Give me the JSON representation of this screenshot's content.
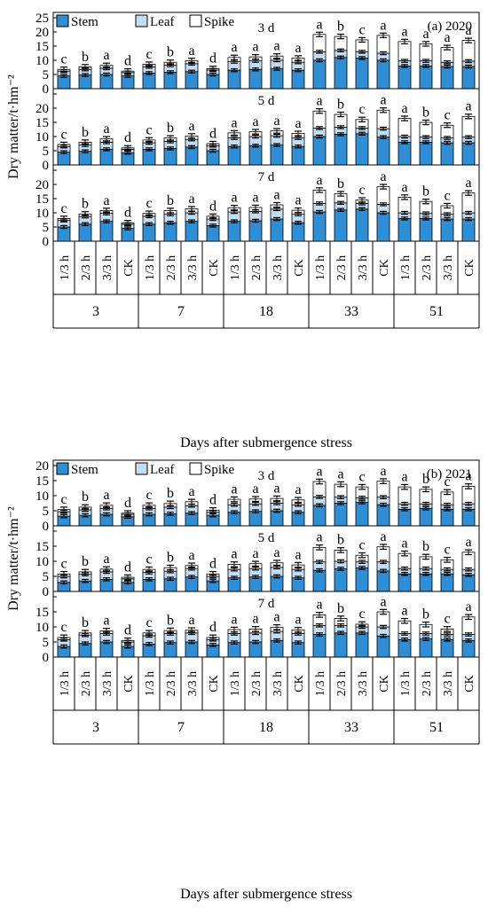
{
  "colors": {
    "stem": "#2e8fd6",
    "leaf": "#c3ddf2",
    "spike": "#ffffff",
    "stroke": "#000000"
  },
  "chart_data": [
    {
      "type": "bar",
      "stacked": true,
      "panel_label": "(a) 2020",
      "ylabel": "Dry matter/t·hm⁻²",
      "xlabel": "Days after submergence stress",
      "legend": [
        "Stem",
        "Leaf",
        "Spike"
      ],
      "legend_placement": "top-left",
      "ylim": [
        0,
        25
      ],
      "yticks": [
        0,
        5,
        10,
        15,
        20,
        25
      ],
      "categories": [
        "1/3 h",
        "2/3 h",
        "3/3 h",
        "CK"
      ],
      "groups": [
        "3",
        "7",
        "18",
        "33",
        "51"
      ],
      "subplots": [
        {
          "title": "3 d",
          "stem": [
            4.5,
            4.8,
            5.0,
            4.5,
            5.5,
            5.8,
            6.0,
            5.0,
            6.5,
            6.8,
            7.0,
            6.5,
            10.0,
            11.0,
            10.8,
            10.0,
            8.0,
            8.0,
            7.8,
            7.8
          ],
          "leaf": [
            1.7,
            2.0,
            2.2,
            1.2,
            2.2,
            2.5,
            2.8,
            1.6,
            3.0,
            3.0,
            3.0,
            2.8,
            3.0,
            2.5,
            2.2,
            2.5,
            1.8,
            1.8,
            1.5,
            1.9
          ],
          "spike": [
            0.6,
            0.9,
            1.0,
            0.5,
            0.9,
            1.0,
            1.1,
            0.5,
            1.5,
            1.4,
            1.5,
            1.5,
            6.1,
            4.9,
            4.2,
            6.3,
            6.8,
            6.0,
            5.2,
            7.3
          ],
          "letters": [
            "c",
            "b",
            "a",
            "d",
            "c",
            "b",
            "a",
            "d",
            "a",
            "a",
            "a",
            "a",
            "a",
            "b",
            "c",
            "a",
            "a",
            "a",
            "a",
            "a"
          ]
        },
        {
          "title": "5 d",
          "stem": [
            4.5,
            4.8,
            5.5,
            4.3,
            5.5,
            5.8,
            6.3,
            5.0,
            6.5,
            6.8,
            7.0,
            6.5,
            10.0,
            10.8,
            11.0,
            9.8,
            8.0,
            8.0,
            7.8,
            7.8
          ],
          "leaf": [
            2.0,
            2.2,
            2.5,
            1.2,
            2.3,
            2.5,
            2.7,
            1.8,
            3.0,
            3.2,
            3.3,
            3.0,
            3.0,
            2.5,
            2.0,
            3.0,
            2.0,
            1.8,
            1.7,
            2.0
          ],
          "spike": [
            0.7,
            1.0,
            1.2,
            0.5,
            1.0,
            1.2,
            1.2,
            0.7,
            1.8,
            1.7,
            1.7,
            1.6,
            6.0,
            4.5,
            3.0,
            6.5,
            6.4,
            5.2,
            4.5,
            7.3
          ],
          "letters": [
            "c",
            "b",
            "a",
            "d",
            "c",
            "b",
            "a",
            "d",
            "a",
            "a",
            "a",
            "a",
            "a",
            "b",
            "c",
            "a",
            "a",
            "b",
            "c",
            "a"
          ]
        },
        {
          "title": "7 d",
          "stem": [
            5.0,
            6.0,
            7.0,
            4.5,
            6.0,
            6.5,
            7.0,
            5.5,
            7.0,
            7.2,
            7.8,
            6.5,
            10.3,
            11.0,
            11.3,
            10.0,
            8.0,
            8.0,
            7.8,
            7.8
          ],
          "leaf": [
            2.3,
            2.7,
            2.8,
            1.5,
            2.8,
            3.0,
            3.0,
            2.3,
            3.3,
            3.3,
            3.5,
            3.0,
            3.0,
            2.5,
            2.0,
            3.0,
            2.0,
            1.8,
            1.7,
            2.2
          ],
          "spike": [
            0.7,
            0.9,
            1.0,
            0.5,
            1.0,
            1.3,
            1.4,
            1.0,
            1.5,
            1.4,
            1.5,
            1.4,
            4.7,
            3.2,
            1.2,
            6.2,
            5.5,
            4.2,
            3.0,
            7.0
          ],
          "letters": [
            "c",
            "b",
            "a",
            "d",
            "c",
            "b",
            "a",
            "d",
            "a",
            "a",
            "a",
            "a",
            "a",
            "b",
            "c",
            "a",
            "a",
            "b",
            "c",
            "a"
          ]
        }
      ]
    },
    {
      "type": "bar",
      "stacked": true,
      "panel_label": "(b) 2021",
      "ylabel": "Dry matter/t·hm⁻²",
      "xlabel": "Days after submergence stress",
      "legend": [
        "Stem",
        "Leaf",
        "Spike"
      ],
      "legend_placement": "top-left",
      "ylim": [
        0,
        20
      ],
      "yticks": [
        0,
        5,
        10,
        15,
        20
      ],
      "categories": [
        "1/3 h",
        "2/3 h",
        "3/3 h",
        "CK"
      ],
      "groups": [
        "3",
        "7",
        "18",
        "33",
        "51"
      ],
      "subplots": [
        {
          "title": "3 d",
          "stem": [
            3.2,
            3.5,
            3.8,
            3.0,
            3.8,
            4.0,
            4.2,
            3.5,
            4.5,
            4.8,
            5.0,
            4.5,
            6.8,
            7.5,
            7.8,
            7.0,
            5.5,
            5.8,
            5.5,
            5.5
          ],
          "leaf": [
            1.5,
            1.8,
            2.0,
            0.8,
            2.0,
            2.2,
            2.5,
            1.0,
            2.5,
            2.5,
            2.5,
            2.5,
            2.8,
            2.0,
            1.5,
            2.5,
            1.8,
            1.5,
            1.5,
            1.8
          ],
          "spike": [
            0.7,
            0.9,
            1.0,
            0.4,
            1.0,
            1.2,
            1.3,
            0.7,
            1.8,
            1.6,
            1.6,
            1.6,
            5.1,
            4.3,
            3.6,
            5.3,
            5.6,
            4.8,
            4.2,
            5.8
          ],
          "letters": [
            "c",
            "b",
            "a",
            "d",
            "c",
            "b",
            "a",
            "d",
            "a",
            "a",
            "a",
            "a",
            "a",
            "a",
            "c",
            "a",
            "a",
            "b",
            "c",
            "a"
          ]
        },
        {
          "title": "5 d",
          "stem": [
            3.0,
            3.5,
            4.0,
            3.0,
            4.0,
            4.2,
            4.8,
            3.5,
            4.5,
            4.8,
            5.0,
            4.5,
            7.0,
            7.5,
            7.8,
            6.8,
            5.8,
            5.8,
            5.8,
            5.5
          ],
          "leaf": [
            2.0,
            2.2,
            2.5,
            1.2,
            2.3,
            2.5,
            2.8,
            1.5,
            2.8,
            2.8,
            3.0,
            2.8,
            2.8,
            2.5,
            2.0,
            3.0,
            1.8,
            1.8,
            1.5,
            1.8
          ],
          "spike": [
            0.8,
            0.8,
            0.9,
            0.5,
            1.0,
            1.2,
            1.0,
            0.8,
            1.7,
            1.6,
            1.5,
            1.5,
            4.8,
            3.7,
            2.2,
            5.0,
            5.0,
            3.9,
            3.2,
            5.7
          ],
          "letters": [
            "c",
            "b",
            "a",
            "d",
            "c",
            "b",
            "a",
            "d",
            "a",
            "a",
            "a",
            "a",
            "a",
            "b",
            "c",
            "a",
            "a",
            "b",
            "c",
            "a"
          ]
        },
        {
          "title": "7 d",
          "stem": [
            3.5,
            4.5,
            5.0,
            3.5,
            4.3,
            4.8,
            5.0,
            4.0,
            4.8,
            5.0,
            5.5,
            4.8,
            7.5,
            8.0,
            8.0,
            7.0,
            5.8,
            6.0,
            5.8,
            5.5
          ],
          "leaf": [
            2.3,
            2.8,
            2.8,
            1.5,
            2.8,
            3.0,
            3.0,
            1.8,
            3.0,
            3.0,
            3.0,
            3.0,
            3.0,
            2.5,
            2.0,
            3.0,
            2.0,
            1.8,
            1.7,
            2.0
          ],
          "spike": [
            0.7,
            0.7,
            0.9,
            0.5,
            0.9,
            1.0,
            0.9,
            0.7,
            1.3,
            1.3,
            1.4,
            1.2,
            3.5,
            2.3,
            0.9,
            5.0,
            4.2,
            3.0,
            1.8,
            5.8
          ],
          "letters": [
            "c",
            "b",
            "a",
            "d",
            "c",
            "b",
            "a",
            "d",
            "a",
            "a",
            "a",
            "a",
            "a",
            "b",
            "c",
            "a",
            "a",
            "b",
            "c",
            "a"
          ]
        }
      ]
    }
  ]
}
